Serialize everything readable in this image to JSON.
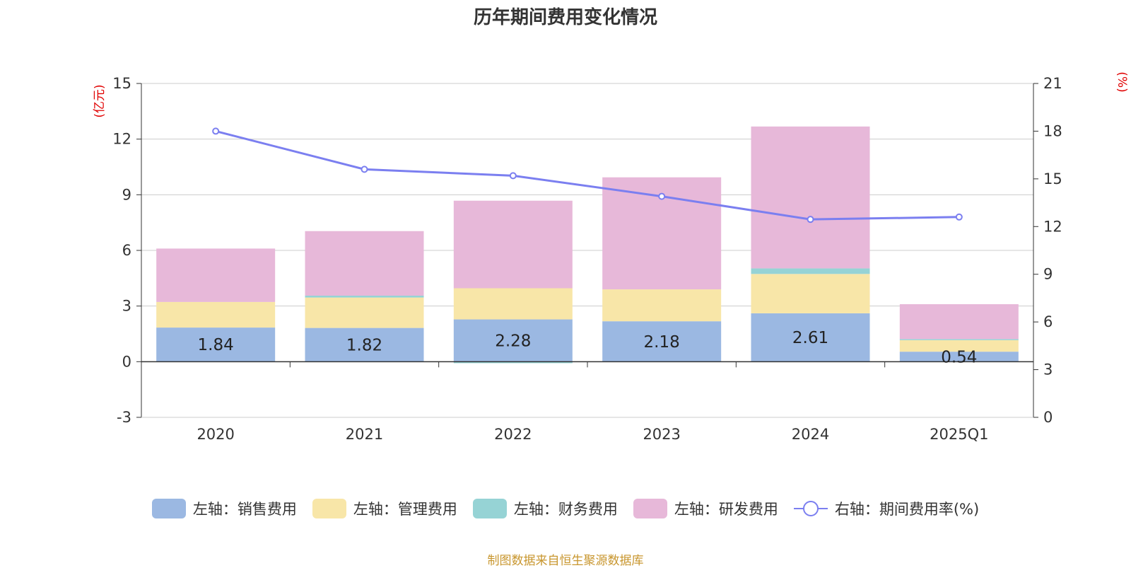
{
  "chart_data": {
    "type": "bar",
    "title": "历年期间费用变化情况",
    "categories": [
      "2020",
      "2021",
      "2022",
      "2023",
      "2024",
      "2025Q1"
    ],
    "left_axis": {
      "unit": "(亿元)",
      "ylim": [
        -3,
        15
      ],
      "ticks": [
        -3,
        0,
        3,
        6,
        9,
        12,
        15
      ]
    },
    "right_axis": {
      "unit": "(%)",
      "ylim": [
        0,
        21
      ],
      "ticks": [
        0,
        3,
        6,
        9,
        12,
        15,
        18,
        21
      ]
    },
    "series": [
      {
        "name": "左轴：销售费用",
        "color": "#9bb8e2",
        "values": [
          1.84,
          1.82,
          2.28,
          2.18,
          2.61,
          0.54
        ],
        "labels": [
          "1.84",
          "1.82",
          "2.28",
          "2.18",
          "2.61",
          "0.54"
        ]
      },
      {
        "name": "左轴：管理费用",
        "color": "#f8e6a8",
        "values": [
          1.38,
          1.64,
          1.68,
          1.72,
          2.12,
          0.62
        ]
      },
      {
        "name": "左轴：财务费用",
        "color": "#96d3d5",
        "values": [
          0.0,
          0.1,
          -0.08,
          0.0,
          0.3,
          0.06
        ]
      },
      {
        "name": "左轴：研发费用",
        "color": "#e7b8d9",
        "values": [
          2.88,
          3.48,
          4.72,
          6.04,
          7.65,
          1.88
        ]
      }
    ],
    "line_series": {
      "name": "右轴：期间费用率(%)",
      "color": "#7b7ff0",
      "axis": "right",
      "values": [
        18.0,
        15.6,
        15.2,
        13.9,
        12.45,
        12.6
      ]
    }
  },
  "source_note": "制图数据来自恒生聚源数据库"
}
